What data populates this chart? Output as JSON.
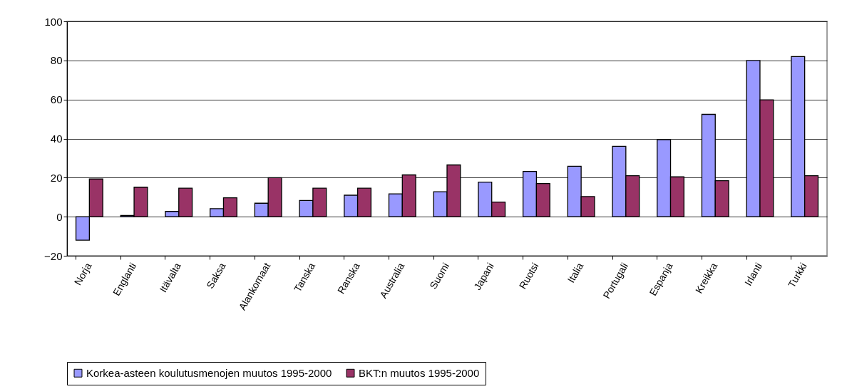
{
  "chart_data": {
    "type": "bar",
    "categories": [
      "Norja",
      "Englanti",
      "Itävalta",
      "Saksa",
      "Alankomaat",
      "Tanska",
      "Ranska",
      "Australia",
      "Suomi",
      "Japani",
      "Ruotsi",
      "Italia",
      "Portugali",
      "Espanja",
      "Kreikka",
      "Irlanti",
      "Turkki"
    ],
    "series": [
      {
        "name": "Korkea-asteen koulutusmenojen muutos 1995-2000",
        "color": "#9999ff",
        "values": [
          -12,
          0.6,
          2.7,
          4.1,
          6.9,
          8.3,
          11,
          11.7,
          12.8,
          17.7,
          23.2,
          25.8,
          36,
          39.4,
          52.4,
          80,
          82
        ]
      },
      {
        "name": "BKT:n muutos 1995-2000",
        "color": "#993366",
        "values": [
          19.3,
          15.1,
          14.6,
          9.7,
          20,
          14.6,
          14.6,
          21.4,
          26.5,
          7.5,
          17,
          10.3,
          21,
          20.4,
          18.4,
          59.8,
          21
        ]
      }
    ],
    "ylim": [
      -20,
      100
    ],
    "yticks": [
      -20,
      0,
      20,
      40,
      60,
      80,
      100
    ],
    "grid": "y",
    "legend": "bottom"
  }
}
